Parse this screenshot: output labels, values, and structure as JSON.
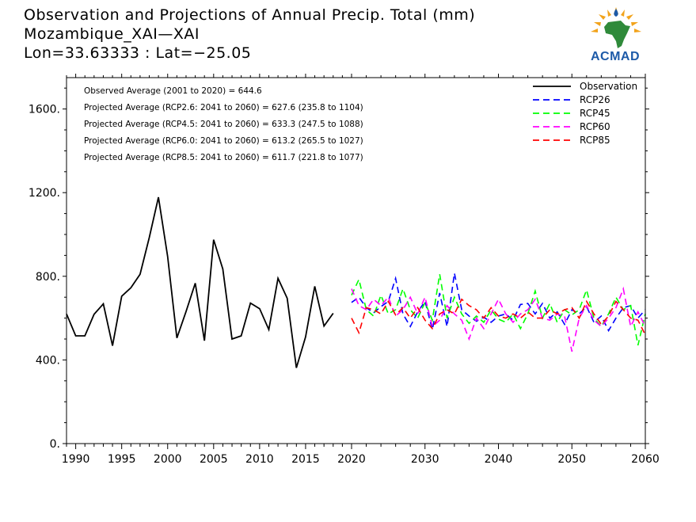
{
  "header": {
    "title_line1": "Observation and Projections of Annual Precip. Total (mm)",
    "title_line2": "Mozambique_XAI—XAI",
    "title_line3": "Lon=33.63333 : Lat=−25.05"
  },
  "logo": {
    "text": "ACMAD",
    "icon": "africa-sun-logo"
  },
  "annotations": [
    "Observed Average (2001 to 2020) = 644.6",
    "Projected Average (RCP2.6: 2041 to 2060) = 627.6 (235.8 to 1104)",
    "Projected Average (RCP4.5: 2041 to 2060) = 633.3 (247.5 to 1088)",
    "Projected Average (RCP6.0: 2041 to 2060) = 613.2 (265.5 to 1027)",
    "Projected Average (RCP8.5: 2041 to 2060) = 611.7 (221.8 to 1077)"
  ],
  "chart_data": {
    "type": "line",
    "xlim": [
      1989,
      2060
    ],
    "ylim": [
      0,
      1750
    ],
    "grid": false,
    "legend_position": "top-right",
    "x_ticks": [
      1990,
      1995,
      2000,
      2005,
      2010,
      2015,
      2020,
      2030,
      2040,
      2050,
      2060
    ],
    "x_tick_labels": [
      "1990",
      "1995",
      "2000",
      "2005",
      "2010",
      "2015",
      "2020",
      "2030",
      "2040",
      "2050",
      "2060"
    ],
    "y_ticks": [
      0,
      400,
      800,
      1200,
      1600
    ],
    "y_tick_labels": [
      "0.",
      "400.",
      "800.",
      "1200.",
      "1600."
    ],
    "series": [
      {
        "name": "Observation",
        "color": "#000000",
        "dashed": false,
        "x": [
          1989,
          1990,
          1991,
          1992,
          1993,
          1994,
          1995,
          1996,
          1997,
          1998,
          1999,
          2000,
          2001,
          2002,
          2003,
          2004,
          2005,
          2006,
          2007,
          2008,
          2009,
          2010,
          2011,
          2012,
          2013,
          2014,
          2015,
          2016,
          2017,
          2018,
          2019
        ],
        "y": [
          620,
          515,
          515,
          618,
          668,
          468,
          705,
          745,
          810,
          985,
          1178,
          895,
          505,
          632,
          767,
          492,
          975,
          835,
          500,
          515,
          672,
          645,
          545,
          790,
          695,
          362,
          510,
          752,
          562,
          623,
          null
        ]
      },
      {
        "name": "RCP26",
        "color": "#0000ff",
        "dashed": true,
        "x": [
          2020,
          2021,
          2022,
          2023,
          2024,
          2025,
          2026,
          2027,
          2028,
          2029,
          2030,
          2031,
          2032,
          2033,
          2034,
          2035,
          2036,
          2037,
          2038,
          2039,
          2040,
          2041,
          2042,
          2043,
          2044,
          2045,
          2046,
          2047,
          2048,
          2049,
          2050,
          2051,
          2052,
          2053,
          2054,
          2055,
          2056,
          2057,
          2058,
          2059,
          2060
        ],
        "y": [
          675,
          700,
          650,
          625,
          655,
          680,
          790,
          620,
          560,
          630,
          680,
          545,
          720,
          560,
          815,
          640,
          610,
          585,
          605,
          580,
          610,
          620,
          590,
          665,
          670,
          620,
          670,
          600,
          630,
          570,
          640,
          620,
          655,
          580,
          610,
          540,
          600,
          650,
          660,
          600,
          640
        ]
      },
      {
        "name": "RCP45",
        "color": "#00ff00",
        "dashed": true,
        "x": [
          2020,
          2021,
          2022,
          2023,
          2024,
          2025,
          2026,
          2027,
          2028,
          2029,
          2030,
          2031,
          2032,
          2033,
          2034,
          2035,
          2036,
          2037,
          2038,
          2039,
          2040,
          2041,
          2042,
          2043,
          2044,
          2045,
          2046,
          2047,
          2048,
          2049,
          2050,
          2051,
          2052,
          2053,
          2054,
          2055,
          2056,
          2057,
          2058,
          2059,
          2060
        ],
        "y": [
          710,
          785,
          640,
          610,
          710,
          620,
          640,
          740,
          640,
          600,
          675,
          590,
          810,
          600,
          700,
          620,
          575,
          610,
          580,
          640,
          595,
          580,
          620,
          550,
          620,
          730,
          600,
          670,
          580,
          640,
          615,
          640,
          735,
          600,
          560,
          620,
          700,
          640,
          660,
          470,
          620
        ]
      },
      {
        "name": "RCP60",
        "color": "#ff00ff",
        "dashed": true,
        "x": [
          2020,
          2021,
          2022,
          2023,
          2024,
          2025,
          2026,
          2027,
          2028,
          2029,
          2030,
          2031,
          2032,
          2033,
          2034,
          2035,
          2036,
          2037,
          2038,
          2039,
          2040,
          2041,
          2042,
          2043,
          2044,
          2045,
          2046,
          2047,
          2048,
          2049,
          2050,
          2051,
          2052,
          2053,
          2054,
          2055,
          2056,
          2057,
          2058,
          2059,
          2060
        ],
        "y": [
          740,
          660,
          640,
          690,
          660,
          700,
          610,
          640,
          700,
          620,
          700,
          560,
          590,
          660,
          620,
          590,
          500,
          600,
          550,
          620,
          690,
          620,
          580,
          620,
          640,
          690,
          600,
          590,
          620,
          610,
          440,
          600,
          660,
          590,
          560,
          600,
          650,
          740,
          560,
          630,
          560
        ]
      },
      {
        "name": "RCP85",
        "color": "#ff0000",
        "dashed": true,
        "x": [
          2020,
          2021,
          2022,
          2023,
          2024,
          2025,
          2026,
          2027,
          2028,
          2029,
          2030,
          2031,
          2032,
          2033,
          2034,
          2035,
          2036,
          2037,
          2038,
          2039,
          2040,
          2041,
          2042,
          2043,
          2044,
          2045,
          2046,
          2047,
          2048,
          2049,
          2050,
          2051,
          2052,
          2053,
          2054,
          2055,
          2056,
          2057,
          2058,
          2059,
          2060
        ],
        "y": [
          600,
          530,
          650,
          640,
          620,
          680,
          615,
          650,
          600,
          650,
          590,
          550,
          620,
          640,
          620,
          690,
          660,
          640,
          600,
          650,
          610,
          600,
          620,
          600,
          630,
          600,
          600,
          640,
          620,
          640,
          650,
          600,
          680,
          620,
          570,
          610,
          680,
          640,
          600,
          590,
          520
        ]
      }
    ]
  }
}
